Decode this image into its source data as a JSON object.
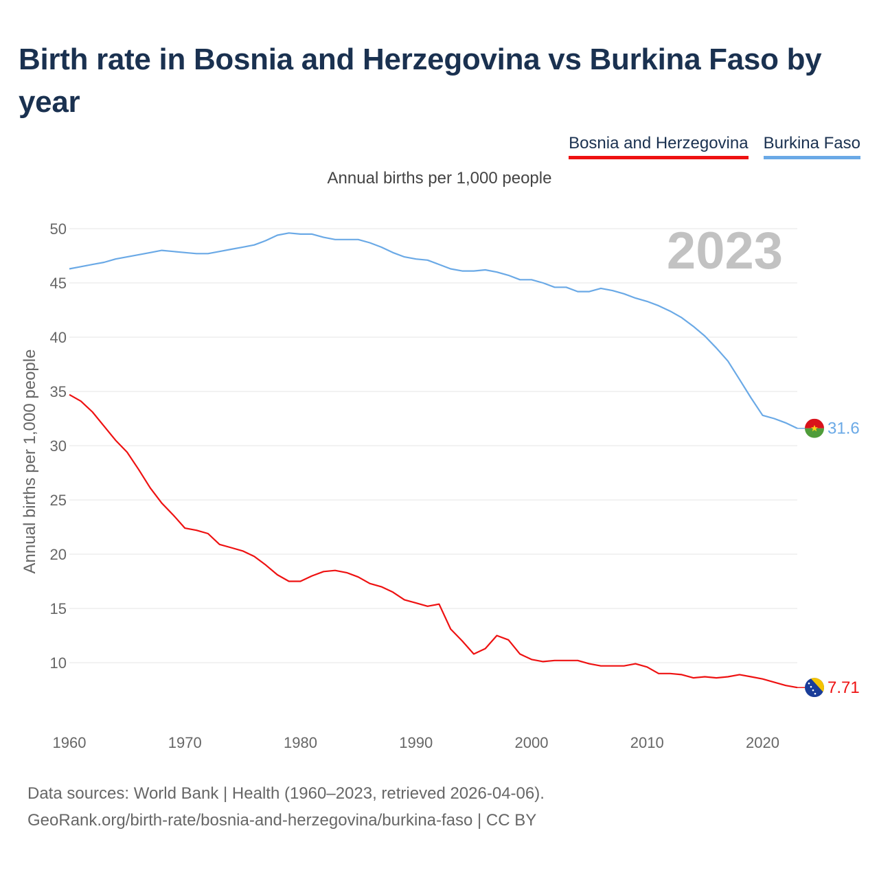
{
  "title": "Birth rate in Bosnia and Herzegovina vs Burkina Faso by year",
  "legend": [
    {
      "label": "Bosnia and Herzegovina",
      "color": "#ee1111"
    },
    {
      "label": "Burkina Faso",
      "color": "#6aa9e6"
    }
  ],
  "subtitle": "Annual births per 1,000 people",
  "year_label": "2023",
  "footer": {
    "line1": "Data sources: World Bank | Health (1960–2023, retrieved 2026-04-06).",
    "line2": "GeoRank.org/birth-rate/bosnia-and-herzegovina/burkina-faso | CC BY"
  },
  "chart_data": {
    "type": "line",
    "title": "Birth rate in Bosnia and Herzegovina vs Burkina Faso by year",
    "xlabel": "",
    "ylabel": "Annual births per 1,000 people",
    "xlim": [
      1960,
      2023
    ],
    "ylim": [
      5,
      50
    ],
    "x_ticks": [
      "1960",
      "1970",
      "1980",
      "1990",
      "2000",
      "2010",
      "2020"
    ],
    "y_ticks": [
      "10",
      "15",
      "20",
      "25",
      "30",
      "35",
      "40",
      "45",
      "50"
    ],
    "grid": true,
    "x": [
      1960,
      1961,
      1962,
      1963,
      1964,
      1965,
      1966,
      1967,
      1968,
      1969,
      1970,
      1971,
      1972,
      1973,
      1974,
      1975,
      1976,
      1977,
      1978,
      1979,
      1980,
      1981,
      1982,
      1983,
      1984,
      1985,
      1986,
      1987,
      1988,
      1989,
      1990,
      1991,
      1992,
      1993,
      1994,
      1995,
      1996,
      1997,
      1998,
      1999,
      2000,
      2001,
      2002,
      2003,
      2004,
      2005,
      2006,
      2007,
      2008,
      2009,
      2010,
      2011,
      2012,
      2013,
      2014,
      2015,
      2016,
      2017,
      2018,
      2019,
      2020,
      2021,
      2022,
      2023
    ],
    "series": [
      {
        "name": "Bosnia and Herzegovina",
        "color": "#ee1111",
        "end_label": "7.71",
        "values": [
          34.7,
          34.1,
          33.1,
          31.8,
          30.5,
          29.4,
          27.8,
          26.1,
          24.7,
          23.6,
          22.4,
          22.2,
          21.9,
          20.9,
          20.6,
          20.3,
          19.8,
          19.0,
          18.1,
          17.5,
          17.5,
          18.0,
          18.4,
          18.5,
          18.3,
          17.9,
          17.3,
          17.0,
          16.5,
          15.8,
          15.5,
          15.2,
          15.4,
          13.1,
          12.0,
          10.8,
          11.3,
          12.5,
          12.1,
          10.8,
          10.3,
          10.1,
          10.2,
          10.2,
          10.2,
          9.9,
          9.7,
          9.7,
          9.7,
          9.9,
          9.6,
          9.0,
          9.0,
          8.9,
          8.6,
          8.7,
          8.6,
          8.7,
          8.9,
          8.7,
          8.5,
          8.2,
          7.9,
          7.71
        ]
      },
      {
        "name": "Burkina Faso",
        "color": "#6aa9e6",
        "end_label": "31.6",
        "values": [
          46.3,
          46.5,
          46.7,
          46.9,
          47.2,
          47.4,
          47.6,
          47.8,
          48.0,
          47.9,
          47.8,
          47.7,
          47.7,
          47.9,
          48.1,
          48.3,
          48.5,
          48.9,
          49.4,
          49.6,
          49.5,
          49.5,
          49.2,
          49.0,
          49.0,
          49.0,
          48.7,
          48.3,
          47.8,
          47.4,
          47.2,
          47.1,
          46.7,
          46.3,
          46.1,
          46.1,
          46.2,
          46.0,
          45.7,
          45.3,
          45.3,
          45.0,
          44.6,
          44.6,
          44.2,
          44.2,
          44.5,
          44.3,
          44.0,
          43.6,
          43.3,
          42.9,
          42.4,
          41.8,
          41.0,
          40.1,
          39.0,
          37.8,
          36.1,
          34.4,
          32.8,
          32.5,
          32.1,
          31.6
        ]
      }
    ]
  }
}
